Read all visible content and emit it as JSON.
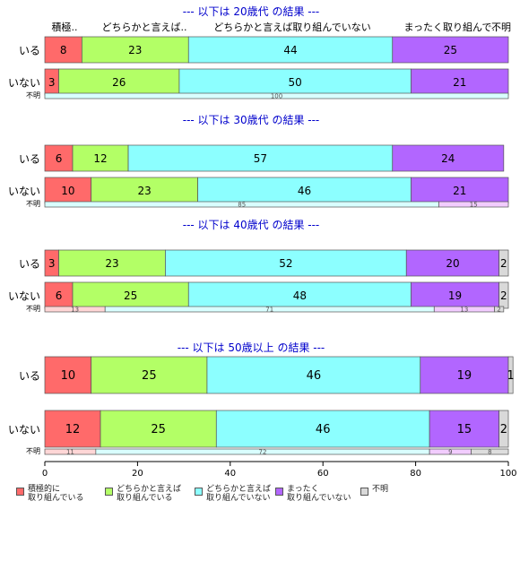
{
  "chart_data": {
    "type": "bar",
    "orientation": "horizontal",
    "stacked": true,
    "xlim": [
      0,
      100
    ],
    "x_ticks": [
      "0",
      "20",
      "40",
      "60",
      "80",
      "100"
    ],
    "header_labels": [
      "積極..",
      "どちらかと言えば..",
      "どちらかと言えば取り組んでいない",
      "まったく取り組んで..",
      "不明"
    ],
    "colors": {
      "active": "#FF6A6A",
      "somewhat_active": "#B3FF66",
      "somewhat_inactive": "#8CFFFF",
      "not_at_all": "#B266FF",
      "unknown": "#D9D9D9"
    },
    "series": [
      {
        "name": "積極的に\n取り組んでいる",
        "key": "active"
      },
      {
        "name": "どちらかと言えば\n取り組んでいる",
        "key": "somewhat_active"
      },
      {
        "name": "どちらかと言えば\n取り組んでいない",
        "key": "somewhat_inactive"
      },
      {
        "name": "まったく\n取り組んでいない",
        "key": "not_at_all"
      },
      {
        "name": "不明",
        "key": "unknown"
      }
    ],
    "groups": [
      {
        "title": "--- 以下は 20歳代 の結果 ---",
        "rows": [
          {
            "label": "いる",
            "values": [
              8,
              23,
              44,
              25,
              0
            ],
            "labels": [
              "8",
              "23",
              "44",
              "25",
              ""
            ]
          },
          {
            "label": "いない",
            "values": [
              3,
              26,
              50,
              21,
              0
            ],
            "labels": [
              "3",
              "26",
              "50",
              "21",
              ""
            ]
          }
        ],
        "unknown_label": "不明",
        "unknown_values": [
          0,
          0,
          100,
          0,
          0
        ],
        "unknown_labels": [
          "",
          "",
          "100",
          "",
          ""
        ]
      },
      {
        "title": "--- 以下は 30歳代 の結果 ---",
        "rows": [
          {
            "label": "いる",
            "values": [
              6,
              12,
              57,
              24,
              0
            ],
            "labels": [
              "6",
              "12",
              "57",
              "24",
              ""
            ]
          },
          {
            "label": "いない",
            "values": [
              10,
              23,
              46,
              21,
              0
            ],
            "labels": [
              "10",
              "23",
              "46",
              "21",
              ""
            ]
          }
        ],
        "unknown_label": "不明",
        "unknown_values": [
          0,
          0,
          85,
          15,
          0
        ],
        "unknown_labels": [
          "",
          "",
          "85",
          "15",
          ""
        ]
      },
      {
        "title": "--- 以下は 40歳代 の結果 ---",
        "rows": [
          {
            "label": "いる",
            "values": [
              3,
              23,
              52,
              20,
              2
            ],
            "labels": [
              "3",
              "23",
              "52",
              "20",
              "2"
            ]
          },
          {
            "label": "いない",
            "values": [
              6,
              25,
              48,
              19,
              2
            ],
            "labels": [
              "6",
              "25",
              "48",
              "19",
              "2"
            ]
          }
        ],
        "unknown_label": "不明",
        "unknown_values": [
          13,
          0,
          71,
          13,
          2
        ],
        "unknown_labels": [
          "13",
          "",
          "71",
          "13",
          "2"
        ]
      },
      {
        "title": "--- 以下は 50歳以上 の結果 ---",
        "rows": [
          {
            "label": "いる",
            "values": [
              10,
              25,
              46,
              19,
              1
            ],
            "labels": [
              "10",
              "25",
              "46",
              "19",
              "1"
            ]
          },
          {
            "label": "いない",
            "values": [
              12,
              25,
              46,
              15,
              2
            ],
            "labels": [
              "12",
              "25",
              "46",
              "15",
              "2"
            ]
          }
        ],
        "unknown_label": "不明",
        "unknown_values": [
          11,
          0,
          72,
          9,
          8
        ],
        "unknown_labels": [
          "11",
          "",
          "72",
          "9",
          "8"
        ]
      }
    ]
  }
}
